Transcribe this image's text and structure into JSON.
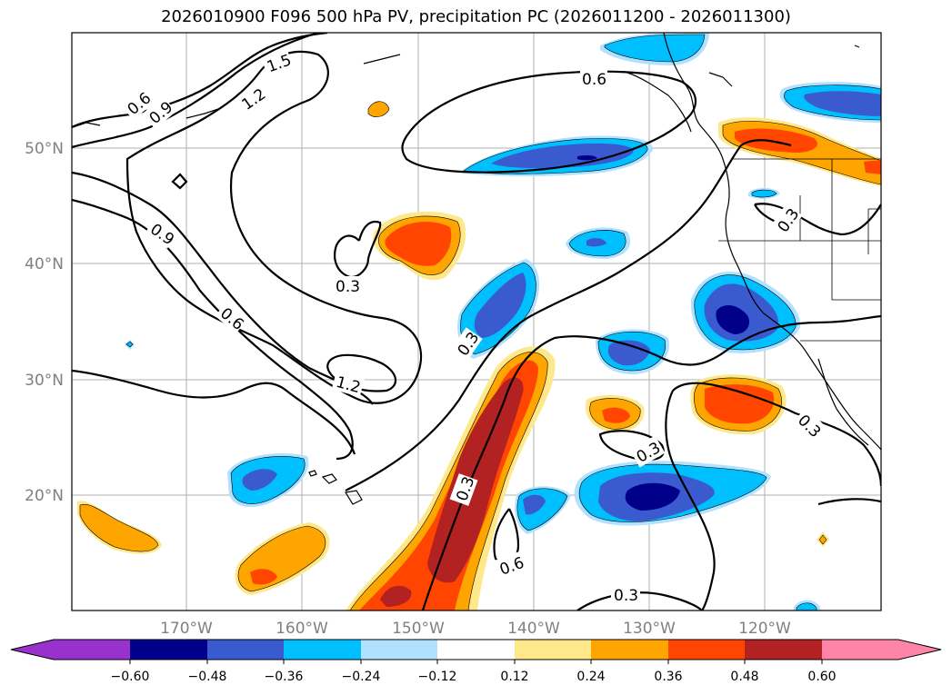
{
  "title": "2026010900 F096 500 hPa PV, precipitation PC (2026011200 - 2026011300)",
  "map": {
    "lat_labels": [
      {
        "text": "50°N",
        "lat": 50
      },
      {
        "text": "40°N",
        "lat": 40
      },
      {
        "text": "30°N",
        "lat": 30
      },
      {
        "text": "20°N",
        "lat": 20
      }
    ],
    "lon_labels": [
      {
        "text": "170°W",
        "lon": -170
      },
      {
        "text": "160°W",
        "lon": -160
      },
      {
        "text": "150°W",
        "lon": -150
      },
      {
        "text": "140°W",
        "lon": -140
      },
      {
        "text": "130°W",
        "lon": -130
      },
      {
        "text": "120°W",
        "lon": -120
      }
    ],
    "lon_range": [
      -180,
      -110
    ],
    "lat_range": [
      10,
      60
    ],
    "contour_labels": [
      "1.5",
      "1.2",
      "0.9",
      "0.6",
      "0.6",
      "0.9",
      "0.6",
      "0.3",
      "1.2",
      "0.3",
      "0.3",
      "0.3",
      "0.6",
      "0.3",
      "0.3",
      "0.3",
      "0.6"
    ]
  },
  "colorbar": {
    "levels": [
      "−0.60",
      "−0.48",
      "−0.36",
      "−0.24",
      "−0.12",
      "0.12",
      "0.24",
      "0.36",
      "0.48",
      "0.60"
    ],
    "colors": [
      "#9932cc",
      "#00008b",
      "#3a5ad0",
      "#00bfff",
      "#b0e2ff",
      "#ffffff",
      "#ffe88a",
      "#ffa500",
      "#ff4500",
      "#b22222",
      "#ff85a8"
    ]
  }
}
